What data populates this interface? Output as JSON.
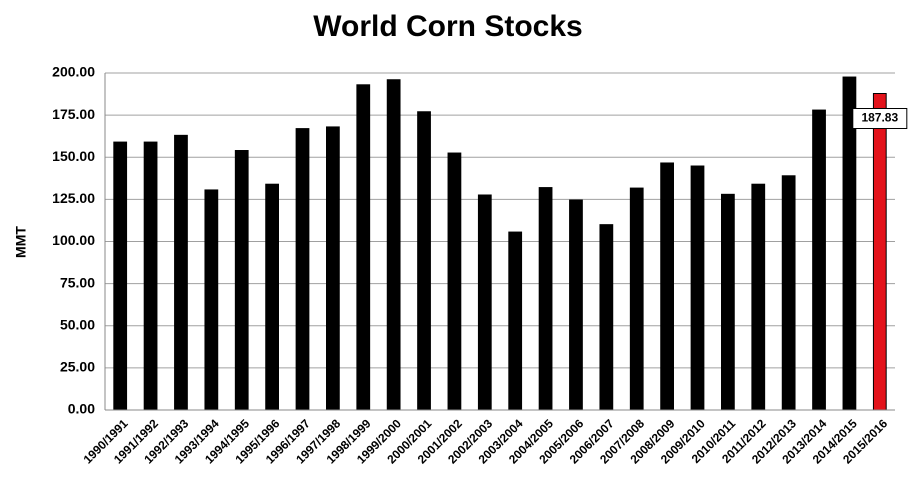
{
  "chart_data": {
    "type": "bar",
    "title": "World Corn Stocks",
    "y_label": "MMT",
    "categories": [
      "1990/1991",
      "1991/1992",
      "1992/1993",
      "1993/1994",
      "1994/1995",
      "1995/1996",
      "1996/1997",
      "1997/1998",
      "1998/1999",
      "1999/2000",
      "2000/2001",
      "2001/2002",
      "2002/2003",
      "2003/2004",
      "2004/2005",
      "2005/2006",
      "2006/2007",
      "2007/2008",
      "2008/2009",
      "2009/2010",
      "2010/2011",
      "2011/2012",
      "2012/2013",
      "2013/2014",
      "2014/2015",
      "2015/2016"
    ],
    "values": [
      159,
      159,
      163,
      130.6,
      154,
      134,
      167,
      168,
      193,
      196,
      177,
      152.5,
      127.6,
      105.6,
      132,
      124.6,
      110,
      131.7,
      146.6,
      144.8,
      128,
      134,
      139,
      178,
      197.6,
      187.83
    ],
    "value_labels": [
      null,
      null,
      null,
      null,
      null,
      null,
      null,
      null,
      null,
      null,
      null,
      null,
      null,
      null,
      null,
      null,
      null,
      null,
      null,
      null,
      null,
      null,
      null,
      null,
      null,
      "187.83"
    ],
    "colors": [
      "#000000",
      "#000000",
      "#000000",
      "#000000",
      "#000000",
      "#000000",
      "#000000",
      "#000000",
      "#000000",
      "#000000",
      "#000000",
      "#000000",
      "#000000",
      "#000000",
      "#000000",
      "#000000",
      "#000000",
      "#000000",
      "#000000",
      "#000000",
      "#000000",
      "#000000",
      "#000000",
      "#000000",
      "#000000",
      "#e3131b"
    ],
    "ylim": [
      0,
      200
    ],
    "yticks": [
      {
        "value": 0,
        "label": "0.00"
      },
      {
        "value": 25,
        "label": "25.00"
      },
      {
        "value": 50,
        "label": "50.00"
      },
      {
        "value": 75,
        "label": "75.00"
      },
      {
        "value": 100,
        "label": "100.00"
      },
      {
        "value": 125,
        "label": "125.00"
      },
      {
        "value": 150,
        "label": "150.00"
      },
      {
        "value": 175,
        "label": "175.00"
      },
      {
        "value": 200,
        "label": "200.00"
      }
    ],
    "grid": true
  }
}
